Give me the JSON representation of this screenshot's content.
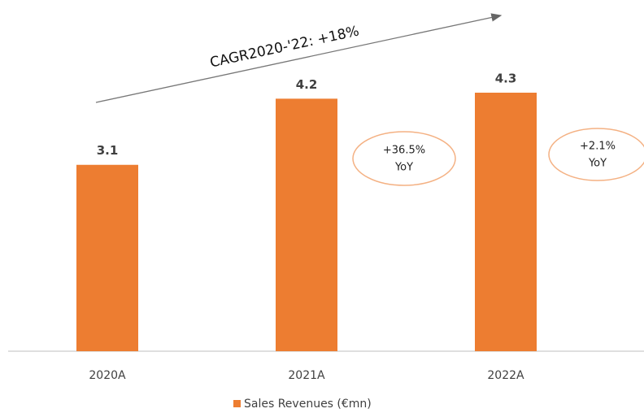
{
  "chart_data": {
    "type": "bar",
    "categories": [
      "2020A",
      "2021A",
      "2022A"
    ],
    "series": [
      {
        "name": "Sales Revenues (€mn)",
        "color": "#ed7d31",
        "values": [
          3.1,
          4.2,
          4.3
        ]
      }
    ],
    "annotations": [
      "CAGR2020-'22: +18%"
    ],
    "yoy_labels": [
      [
        "+36.5%",
        "YoY"
      ],
      [
        "+2.1%",
        "YoY"
      ]
    ],
    "legend": "bottom"
  }
}
